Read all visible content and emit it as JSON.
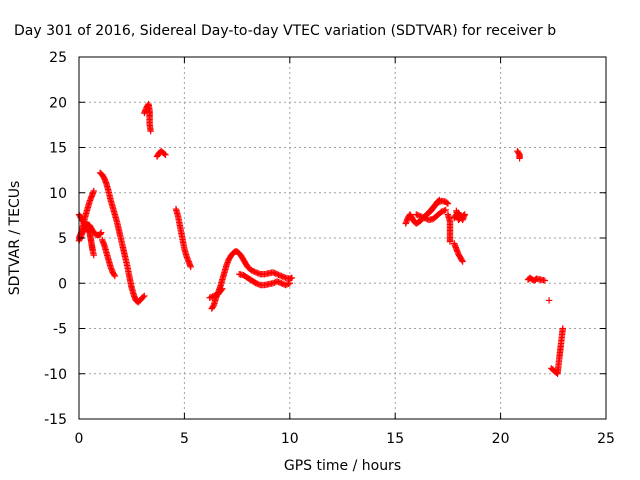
{
  "chart_data": {
    "type": "scatter",
    "title": "Day 301 of 2016, Sidereal Day-to-day VTEC variation (SDTVAR) for receiver b",
    "xlabel": "GPS time / hours",
    "ylabel": "SDTVAR / TECUs",
    "xlim": [
      0,
      25
    ],
    "ylim": [
      -15,
      25
    ],
    "xticks": [
      0,
      5,
      10,
      15,
      20,
      25
    ],
    "yticks": [
      -15,
      -10,
      -5,
      0,
      5,
      10,
      15,
      20,
      25
    ],
    "xtick_labels": [
      "0",
      "5",
      "10",
      "15",
      "20",
      "25"
    ],
    "ytick_labels": [
      "-15",
      "-10",
      "-5",
      "0",
      "5",
      "10",
      "15",
      "20",
      "25"
    ],
    "grid": true,
    "marker": "plus",
    "marker_color": "#ff0000",
    "series": [
      {
        "segments": [
          [
            [
              0.0,
              5.0
            ],
            [
              0.1,
              5.6
            ],
            [
              0.2,
              6.4
            ],
            [
              0.3,
              7.4
            ],
            [
              0.4,
              8.2
            ],
            [
              0.5,
              9.0
            ],
            [
              0.6,
              9.6
            ],
            [
              0.7,
              10.2
            ]
          ],
          [
            [
              0.0,
              7.6
            ],
            [
              0.1,
              7.2
            ],
            [
              0.2,
              6.8
            ],
            [
              0.3,
              6.3
            ],
            [
              0.4,
              6.0
            ],
            [
              0.5,
              5.6
            ],
            [
              0.55,
              5.0
            ],
            [
              0.6,
              4.3
            ],
            [
              0.65,
              3.6
            ],
            [
              0.7,
              3.1
            ]
          ],
          [
            [
              0.0,
              4.7
            ],
            [
              0.1,
              5.2
            ],
            [
              0.2,
              5.8
            ],
            [
              0.3,
              6.2
            ],
            [
              0.4,
              6.5
            ],
            [
              0.5,
              6.4
            ],
            [
              0.6,
              6.0
            ],
            [
              0.7,
              5.6
            ],
            [
              0.8,
              5.4
            ],
            [
              0.9,
              5.3
            ],
            [
              1.0,
              5.4
            ],
            [
              1.05,
              5.6
            ]
          ],
          [
            [
              1.0,
              12.2
            ],
            [
              1.1,
              12.0
            ],
            [
              1.2,
              11.6
            ],
            [
              1.3,
              11.0
            ],
            [
              1.4,
              10.2
            ],
            [
              1.5,
              9.2
            ],
            [
              1.6,
              8.4
            ],
            [
              1.7,
              7.6
            ],
            [
              1.8,
              6.8
            ],
            [
              1.9,
              5.8
            ],
            [
              2.0,
              4.8
            ],
            [
              2.1,
              3.8
            ],
            [
              2.2,
              2.8
            ],
            [
              2.3,
              1.8
            ],
            [
              2.4,
              0.6
            ],
            [
              2.5,
              -0.5
            ],
            [
              2.6,
              -1.3
            ],
            [
              2.7,
              -1.9
            ],
            [
              2.8,
              -2.1
            ],
            [
              2.9,
              -1.9
            ],
            [
              3.0,
              -1.6
            ],
            [
              3.1,
              -1.4
            ]
          ],
          [
            [
              1.1,
              4.8
            ],
            [
              1.2,
              4.2
            ],
            [
              1.3,
              3.4
            ],
            [
              1.4,
              2.6
            ],
            [
              1.5,
              1.8
            ],
            [
              1.6,
              1.2
            ],
            [
              1.7,
              0.8
            ]
          ],
          [
            [
              3.1,
              18.8
            ],
            [
              3.2,
              19.4
            ],
            [
              3.3,
              19.8
            ],
            [
              3.35,
              19.0
            ],
            [
              3.35,
              18.4
            ],
            [
              3.35,
              17.6
            ],
            [
              3.4,
              16.8
            ]
          ],
          [
            [
              3.7,
              14.0
            ],
            [
              3.8,
              14.4
            ],
            [
              3.9,
              14.6
            ],
            [
              4.0,
              14.4
            ],
            [
              4.1,
              14.2
            ]
          ],
          [
            [
              4.6,
              8.2
            ],
            [
              4.7,
              7.4
            ],
            [
              4.8,
              6.2
            ],
            [
              4.9,
              5.0
            ],
            [
              5.0,
              3.8
            ],
            [
              5.1,
              3.0
            ],
            [
              5.2,
              2.4
            ],
            [
              5.3,
              1.8
            ]
          ],
          [
            [
              6.3,
              -2.8
            ],
            [
              6.4,
              -2.4
            ],
            [
              6.5,
              -1.6
            ],
            [
              6.6,
              -1.0
            ],
            [
              6.7,
              -0.4
            ],
            [
              6.8,
              0.4
            ],
            [
              6.9,
              1.2
            ],
            [
              7.0,
              2.0
            ],
            [
              7.1,
              2.6
            ],
            [
              7.2,
              3.0
            ],
            [
              7.3,
              3.3
            ],
            [
              7.4,
              3.5
            ],
            [
              7.5,
              3.5
            ],
            [
              7.6,
              3.3
            ],
            [
              7.7,
              3.0
            ],
            [
              7.8,
              2.6
            ],
            [
              7.9,
              2.2
            ],
            [
              8.0,
              1.8
            ],
            [
              8.2,
              1.4
            ],
            [
              8.4,
              1.2
            ],
            [
              8.6,
              1.0
            ],
            [
              8.8,
              1.0
            ],
            [
              9.0,
              1.1
            ],
            [
              9.2,
              1.2
            ],
            [
              9.4,
              1.0
            ],
            [
              9.6,
              0.8
            ],
            [
              9.8,
              0.6
            ],
            [
              10.0,
              0.5
            ],
            [
              10.1,
              0.6
            ]
          ],
          [
            [
              6.2,
              -1.6
            ],
            [
              6.4,
              -1.4
            ],
            [
              6.6,
              -1.2
            ],
            [
              6.8,
              -0.6
            ]
          ],
          [
            [
              7.6,
              1.0
            ],
            [
              7.8,
              0.9
            ],
            [
              8.0,
              0.6
            ],
            [
              8.2,
              0.3
            ],
            [
              8.4,
              0.0
            ],
            [
              8.6,
              -0.2
            ],
            [
              8.8,
              -0.2
            ],
            [
              9.0,
              -0.1
            ],
            [
              9.2,
              0.0
            ],
            [
              9.4,
              0.2
            ],
            [
              9.6,
              0.0
            ],
            [
              9.8,
              -0.2
            ],
            [
              10.0,
              0.0
            ]
          ],
          [
            [
              15.5,
              6.6
            ],
            [
              15.6,
              7.2
            ],
            [
              15.7,
              7.6
            ],
            [
              15.8,
              7.2
            ],
            [
              15.9,
              6.8
            ],
            [
              16.0,
              6.6
            ],
            [
              16.2,
              6.9
            ],
            [
              16.4,
              7.4
            ],
            [
              16.6,
              7.8
            ],
            [
              16.8,
              8.4
            ],
            [
              17.0,
              8.9
            ],
            [
              17.2,
              9.1
            ],
            [
              17.4,
              9.0
            ],
            [
              17.5,
              8.8
            ]
          ],
          [
            [
              16.0,
              7.6
            ],
            [
              16.2,
              7.4
            ],
            [
              16.4,
              7.2
            ],
            [
              16.6,
              7.0
            ],
            [
              16.8,
              7.1
            ],
            [
              17.0,
              7.5
            ],
            [
              17.2,
              7.9
            ],
            [
              17.4,
              8.1
            ]
          ],
          [
            [
              16.5,
              7.6
            ],
            [
              16.7,
              8.0
            ],
            [
              16.9,
              8.6
            ],
            [
              17.0,
              9.0
            ],
            [
              17.1,
              9.2
            ]
          ],
          [
            [
              17.5,
              7.6
            ],
            [
              17.6,
              6.8
            ],
            [
              17.6,
              6.0
            ],
            [
              17.6,
              5.2
            ],
            [
              17.6,
              4.6
            ]
          ],
          [
            [
              17.8,
              7.2
            ],
            [
              17.9,
              7.6
            ],
            [
              18.0,
              7.8
            ],
            [
              18.1,
              7.4
            ],
            [
              18.2,
              7.0
            ],
            [
              18.3,
              7.6
            ],
            [
              18.0,
              7.0
            ],
            [
              17.9,
              8.0
            ]
          ],
          [
            [
              17.8,
              4.4
            ],
            [
              17.9,
              3.8
            ],
            [
              18.0,
              3.2
            ],
            [
              18.1,
              2.8
            ],
            [
              18.2,
              2.4
            ]
          ],
          [
            [
              20.8,
              14.6
            ],
            [
              20.9,
              14.2
            ],
            [
              20.9,
              13.8
            ]
          ],
          [
            [
              21.3,
              0.4
            ],
            [
              21.4,
              0.6
            ],
            [
              21.5,
              0.4
            ],
            [
              21.6,
              0.3
            ],
            [
              21.7,
              0.5
            ],
            [
              22.1,
              0.3
            ]
          ],
          [
            [
              22.3,
              -1.9
            ]
          ],
          [
            [
              22.4,
              -9.4
            ],
            [
              22.5,
              -9.6
            ],
            [
              22.6,
              -9.8
            ],
            [
              22.7,
              -10.0
            ],
            [
              22.75,
              -9.0
            ],
            [
              22.8,
              -8.0
            ],
            [
              22.85,
              -7.0
            ],
            [
              22.9,
              -6.0
            ],
            [
              22.95,
              -5.0
            ]
          ]
        ]
      }
    ]
  }
}
